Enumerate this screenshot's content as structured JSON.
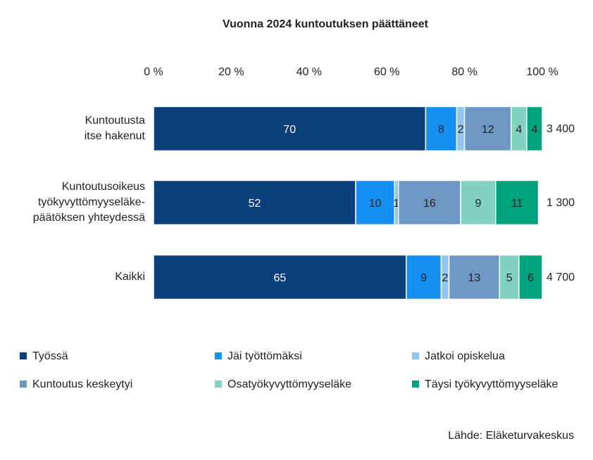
{
  "chart_data": {
    "type": "stacked-bar-horizontal",
    "title": "Vuonna 2024 kuntoutuksen päättäneet",
    "categories": [
      "Kuntoutusta\nitse hakenut",
      "Kuntoutusoikeus\ntyökyvyttömyyseläke-\npäätöksen yhteydessä",
      "Kaikki"
    ],
    "series": [
      {
        "name": "Työssä",
        "color": "#0b3f7c",
        "values": [
          70,
          52,
          65
        ]
      },
      {
        "name": "Jäi työttömäksi",
        "color": "#168ff2",
        "values": [
          8,
          10,
          9
        ]
      },
      {
        "name": "Jatkoi opiskelua",
        "color": "#90c6f0",
        "values": [
          2,
          1,
          2
        ]
      },
      {
        "name": "Kuntoutus keskeytyi",
        "color": "#6f97c3",
        "values": [
          12,
          16,
          13
        ]
      },
      {
        "name": "Osatyökyvyttömyyseläke",
        "color": "#82d2c2",
        "values": [
          4,
          9,
          5
        ]
      },
      {
        "name": "Täysi työkyvyttömyyseläke",
        "color": "#00a37c",
        "values": [
          4,
          11,
          6
        ]
      }
    ],
    "totals": {
      "values": [
        3400,
        1300,
        4700
      ],
      "value_labels": [
        "3 400",
        "1 300",
        "4 700"
      ]
    },
    "xlim": [
      0,
      100
    ],
    "xticks": [
      {
        "value": 0,
        "label": "0 %"
      },
      {
        "value": 20,
        "label": "20 %"
      },
      {
        "value": 40,
        "label": "40 %"
      },
      {
        "value": 60,
        "label": "60 %"
      },
      {
        "value": 80,
        "label": "80 %"
      },
      {
        "value": 100,
        "label": "100 %"
      }
    ],
    "legend": "bottom",
    "source": "Lähde: Eläketurvakeskus"
  }
}
